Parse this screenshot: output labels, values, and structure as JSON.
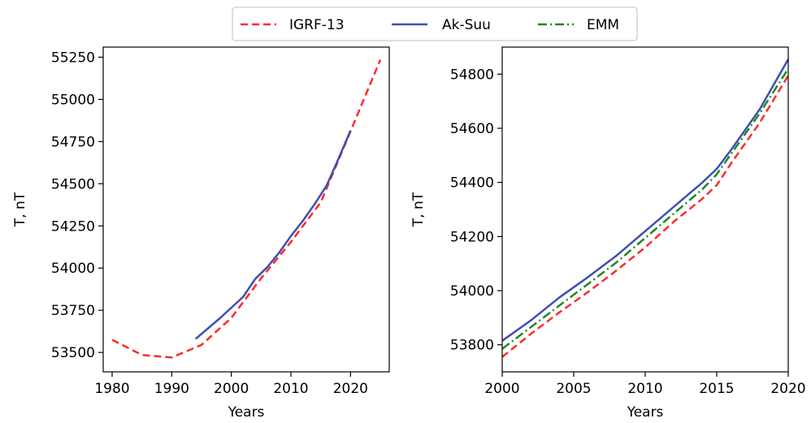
{
  "legend": {
    "entries": [
      {
        "label": "IGRF-13",
        "color": "#ff2a2a",
        "style": "dashed"
      },
      {
        "label": "Ak-Suu",
        "color": "#3f4fb0",
        "style": "solid"
      },
      {
        "label": "EMM",
        "color": "#1f8a1f",
        "style": "dashdot"
      }
    ],
    "placement": "top-center"
  },
  "chart_data": [
    {
      "type": "line",
      "xlabel": "Years",
      "ylabel": "T, nT",
      "xlim": [
        1978.5,
        2026.5
      ],
      "ylim": [
        53385,
        55310
      ],
      "xticks": [
        1980,
        1990,
        2000,
        2010,
        2020
      ],
      "yticks": [
        53500,
        53750,
        54000,
        54250,
        54500,
        54750,
        55000,
        55250
      ],
      "grid": false,
      "series": [
        {
          "name": "IGRF-13",
          "color": "#ff2a2a",
          "style": "dashed",
          "x": [
            1980,
            1985,
            1990,
            1995,
            2000,
            2005,
            2010,
            2015,
            2020,
            2025
          ],
          "y": [
            53575,
            53485,
            53470,
            53545,
            53705,
            53940,
            54155,
            54390,
            54810,
            55235
          ]
        },
        {
          "name": "Ak-Suu",
          "color": "#3f4fb0",
          "style": "solid",
          "x": [
            1994,
            1996,
            1998,
            2000,
            2002,
            2004,
            2006,
            2008,
            2010,
            2012,
            2014,
            2016,
            2018,
            2020
          ],
          "y": [
            53580,
            53640,
            53700,
            53765,
            53830,
            53935,
            54005,
            54090,
            54190,
            54280,
            54380,
            54490,
            54650,
            54815
          ]
        }
      ]
    },
    {
      "type": "line",
      "xlabel": "Years",
      "ylabel": "T, nT",
      "xlim": [
        2000,
        2020
      ],
      "ylim": [
        53700,
        54900
      ],
      "xticks": [
        2000,
        2005,
        2010,
        2015,
        2020
      ],
      "yticks": [
        53800,
        54000,
        54200,
        54400,
        54600,
        54800
      ],
      "grid": false,
      "series": [
        {
          "name": "IGRF-13",
          "color": "#ff2a2a",
          "style": "dashed",
          "x": [
            2000,
            2002,
            2004,
            2006,
            2008,
            2010,
            2012,
            2014,
            2015,
            2016,
            2018,
            2020
          ],
          "y": [
            53755,
            53840,
            53920,
            53995,
            54075,
            54160,
            54255,
            54340,
            54390,
            54470,
            54620,
            54795
          ]
        },
        {
          "name": "Ak-Suu",
          "color": "#3f4fb0",
          "style": "solid",
          "x": [
            2000,
            2002,
            2004,
            2006,
            2008,
            2010,
            2012,
            2014,
            2015,
            2016,
            2018,
            2020
          ],
          "y": [
            53815,
            53890,
            53975,
            54050,
            54130,
            54220,
            54310,
            54400,
            54450,
            54520,
            54670,
            54855
          ]
        },
        {
          "name": "EMM",
          "color": "#1f8a1f",
          "style": "dashdot",
          "x": [
            2000,
            2002,
            2004,
            2006,
            2008,
            2010,
            2012,
            2014,
            2015,
            2016,
            2018,
            2020
          ],
          "y": [
            53785,
            53865,
            53945,
            54025,
            54105,
            54195,
            54285,
            54375,
            54430,
            54505,
            54655,
            54820
          ]
        }
      ]
    }
  ]
}
